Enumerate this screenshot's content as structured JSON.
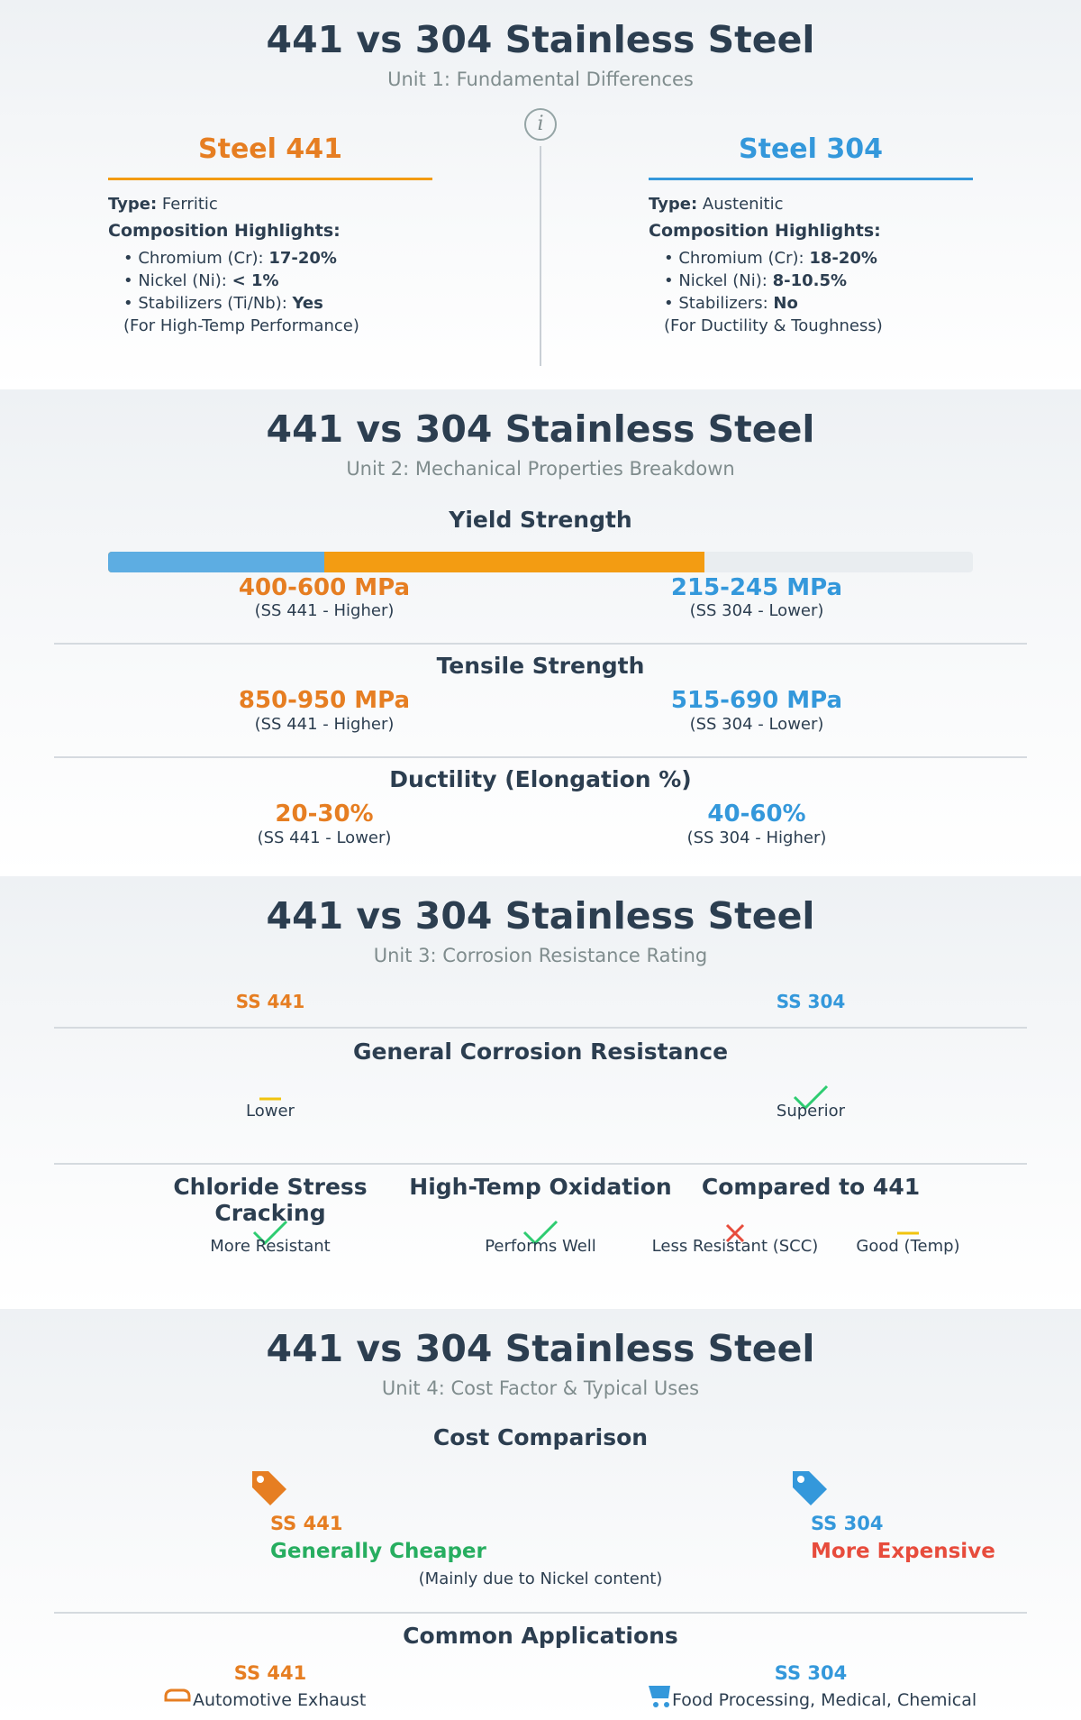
{
  "main_title": "441 vs 304 Stainless Steel",
  "colors": {
    "steel441": "#e67e22",
    "steel304": "#3498db",
    "good": "#27ae60",
    "bad": "#e74c3c",
    "neutral": "#f1c40f"
  },
  "unit1": {
    "subtitle": "Unit 1: Fundamental Differences",
    "info_icon": "i",
    "steel441": {
      "heading": "Steel 441",
      "type_label": "Type:",
      "type_value": "Ferritic",
      "comp_label": "Composition Highlights:",
      "cr_label": "• Chromium (Cr):",
      "cr_value": "17-20%",
      "ni_label": "• Nickel (Ni):",
      "ni_value": "< 1%",
      "stab_label": "• Stabilizers (Ti/Nb):",
      "stab_value": "Yes",
      "purpose": "(For High-Temp Performance)"
    },
    "steel304": {
      "heading": "Steel 304",
      "type_label": "Type:",
      "type_value": "Austenitic",
      "comp_label": "Composition Highlights:",
      "cr_label": "• Chromium (Cr):",
      "cr_value": "18-20%",
      "ni_label": "• Nickel (Ni):",
      "ni_value": "8-10.5%",
      "stab_label": "• Stabilizers:",
      "stab_value": "No",
      "purpose": "(For Ductility & Toughness)"
    }
  },
  "unit2": {
    "subtitle": "Unit 2: Mechanical Properties Breakdown",
    "yield": {
      "title": "Yield Strength",
      "bar_304_fraction": 0.25,
      "bar_441_fraction": 0.69,
      "ss441_value": "400-600 MPa",
      "ss441_note": "(SS 441 - Higher)",
      "ss304_value": "215-245 MPa",
      "ss304_note": "(SS 304 - Lower)"
    },
    "tensile": {
      "title": "Tensile Strength",
      "ss441_value": "850-950 MPa",
      "ss441_note": "(SS 441 - Higher)",
      "ss304_value": "515-690 MPa",
      "ss304_note": "(SS 304 - Lower)"
    },
    "ductility": {
      "title": "Ductility (Elongation %)",
      "ss441_value": "20-30%",
      "ss441_note": "(SS 441 - Lower)",
      "ss304_value": "40-60%",
      "ss304_note": "(SS 304 - Higher)"
    }
  },
  "unit3": {
    "subtitle": "Unit 3: Corrosion Resistance Rating",
    "col_441": "SS 441",
    "col_304": "SS 304",
    "general": {
      "title": "General Corrosion Resistance",
      "ss441_rating": "Lower",
      "ss304_rating": "Superior"
    },
    "chloride": {
      "title": "Chloride Stress Cracking",
      "rating": "More Resistant"
    },
    "oxidation": {
      "title": "High-Temp Oxidation",
      "rating": "Performs Well"
    },
    "compared": {
      "title": "Compared to 441",
      "rating_scc": "Less Resistant (SCC)",
      "rating_temp": "Good (Temp)"
    }
  },
  "unit4": {
    "subtitle": "Unit 4: Cost Factor & Typical Uses",
    "cost": {
      "title": "Cost Comparison",
      "ss441_name": "SS 441",
      "ss441_verdict": "Generally Cheaper",
      "ss304_name": "SS 304",
      "ss304_verdict": "More Expensive",
      "note": "(Mainly due to Nickel content)"
    },
    "apps": {
      "title": "Common Applications",
      "ss441_name": "SS 441",
      "ss441_use": "Automotive Exhaust",
      "ss304_name": "SS 304",
      "ss304_use": "Food Processing, Medical, Chemical"
    }
  }
}
